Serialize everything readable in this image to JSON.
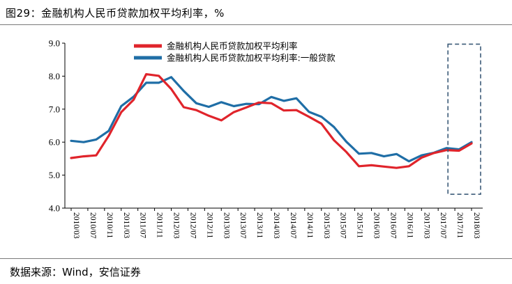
{
  "figure": {
    "title": "图29：金融机构人民币贷款加权平均利率，%",
    "source": "数据来源：Wind，安信证券"
  },
  "colors": {
    "series_1": "#e0242b",
    "series_2": "#1f6ea6",
    "highlight_box": "#3b5a78"
  },
  "chart_data": {
    "type": "line",
    "title": "",
    "xlabel": "",
    "ylabel": "",
    "ylim": [
      4.0,
      9.0
    ],
    "yticks": [
      "4.0",
      "5.0",
      "6.0",
      "7.0",
      "8.0",
      "9.0"
    ],
    "x": [
      "2010/03",
      "2010/06",
      "2010/09",
      "2010/12",
      "2011/03",
      "2011/06",
      "2011/09",
      "2011/12",
      "2012/03",
      "2012/06",
      "2012/09",
      "2012/12",
      "2013/03",
      "2013/06",
      "2013/09",
      "2013/12",
      "2014/03",
      "2014/06",
      "2014/09",
      "2014/12",
      "2015/03",
      "2015/06",
      "2015/09",
      "2015/12",
      "2016/03",
      "2016/06",
      "2016/09",
      "2016/12",
      "2017/03",
      "2017/06",
      "2017/09",
      "2017/12",
      "2018/03"
    ],
    "xtick_labels": [
      "2010/03",
      "2010/07",
      "2010/11",
      "2011/03",
      "2011/07",
      "2011/11",
      "2012/03",
      "2012/07",
      "2012/11",
      "2013/03",
      "2013/07",
      "2013/11",
      "2014/03",
      "2014/07",
      "2014/11",
      "2015/03",
      "2015/07",
      "2015/11",
      "2016/03",
      "2016/07",
      "2016/11",
      "2017/03",
      "2017/07",
      "2017/11",
      "2018/03"
    ],
    "legend_position": "top-center",
    "series": [
      {
        "name": "金融机构人民币贷款加权平均利率",
        "values": [
          5.52,
          5.57,
          5.6,
          6.19,
          6.91,
          7.29,
          8.06,
          8.01,
          7.61,
          7.06,
          6.97,
          6.8,
          6.66,
          6.91,
          7.05,
          7.2,
          7.18,
          6.96,
          6.97,
          6.77,
          6.56,
          6.06,
          5.7,
          5.27,
          5.3,
          5.26,
          5.22,
          5.27,
          5.53,
          5.67,
          5.76,
          5.74,
          5.96
        ]
      },
      {
        "name": "金融机构人民币贷款加权平均利率:一般贷款",
        "values": [
          6.04,
          6.0,
          6.08,
          6.34,
          7.09,
          7.38,
          7.8,
          7.8,
          7.97,
          7.55,
          7.18,
          7.07,
          7.21,
          7.09,
          7.16,
          7.15,
          7.37,
          7.25,
          7.33,
          6.92,
          6.77,
          6.46,
          6.01,
          5.65,
          5.67,
          5.57,
          5.64,
          5.42,
          5.6,
          5.68,
          5.82,
          5.78,
          6.0
        ]
      }
    ],
    "highlight": {
      "type": "dashed-box",
      "x_range": [
        "2017/07",
        "2018/03"
      ],
      "y_range": [
        4.42,
        8.97
      ]
    }
  }
}
